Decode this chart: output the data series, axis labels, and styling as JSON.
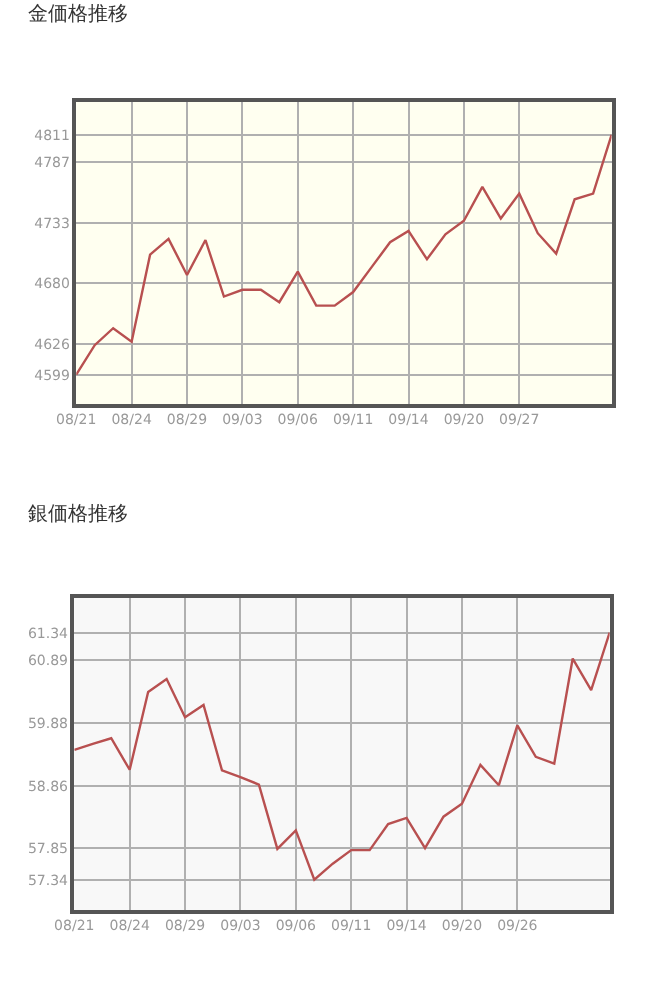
{
  "chart_data": [
    {
      "type": "line",
      "title": "金価格推移",
      "categories": [
        "08/21",
        null,
        null,
        "08/24",
        null,
        null,
        "08/29",
        null,
        null,
        "09/03",
        null,
        null,
        "09/06",
        null,
        null,
        "09/11",
        null,
        null,
        "09/14",
        null,
        null,
        "09/20",
        null,
        null,
        "09/27",
        null,
        null,
        null,
        null,
        null
      ],
      "series": [
        {
          "color": "#b85050",
          "values": [
            4599,
            4625,
            4640,
            4628,
            4705,
            4719,
            4687,
            4718,
            4668,
            4674,
            4674,
            4663,
            4690,
            4660,
            4660,
            4672,
            4694,
            4716,
            4726,
            4701,
            4723,
            4735,
            4765,
            4737,
            4759,
            4724,
            4706,
            4754,
            4759,
            4811
          ]
        }
      ],
      "ylim": [
        4573,
        4840
      ],
      "yticks": [
        4599,
        4626,
        4680,
        4733,
        4787,
        4811
      ],
      "grid": true,
      "marker": "none",
      "line_style": "solid"
    },
    {
      "type": "line",
      "title": "銀価格推移",
      "categories": [
        "08/21",
        null,
        null,
        "08/24",
        null,
        null,
        "08/29",
        null,
        null,
        "09/03",
        null,
        null,
        "09/06",
        null,
        null,
        "09/11",
        null,
        null,
        "09/14",
        null,
        null,
        "09/20",
        null,
        null,
        "09/26",
        null,
        null,
        null,
        null,
        null
      ],
      "series": [
        {
          "color": "#b85050",
          "values": [
            59.44,
            59.54,
            59.63,
            59.12,
            60.38,
            60.59,
            59.97,
            60.17,
            59.11,
            59.0,
            58.88,
            57.84,
            58.14,
            57.34,
            57.6,
            57.82,
            57.82,
            58.24,
            58.34,
            57.85,
            58.36,
            58.57,
            59.2,
            58.87,
            59.84,
            59.33,
            59.22,
            60.92,
            60.41,
            61.34
          ]
        }
      ],
      "ylim": [
        56.85,
        61.9
      ],
      "yticks": [
        57.34,
        57.85,
        58.86,
        59.88,
        60.89,
        61.34
      ],
      "grid": true,
      "marker": "none",
      "line_style": "solid"
    }
  ]
}
